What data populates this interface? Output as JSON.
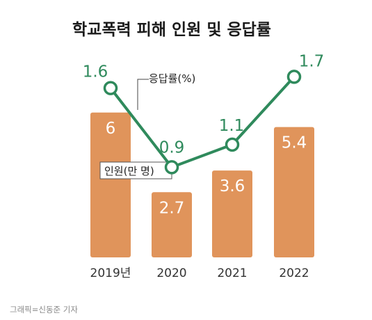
{
  "chart_data": {
    "type": "bar+line",
    "title": "학교폭력 피해 인원 및 응답률",
    "categories": [
      "2019년",
      "2020",
      "2021",
      "2022"
    ],
    "series": [
      {
        "name": "인원(만 명)",
        "type": "bar",
        "values": [
          6,
          2.7,
          3.6,
          5.4
        ],
        "labels": [
          "6",
          "2.7",
          "3.6",
          "5.4"
        ]
      },
      {
        "name": "응답률(%)",
        "type": "line",
        "values": [
          1.6,
          0.9,
          1.1,
          1.7
        ],
        "labels": [
          "1.6",
          "0.9",
          "1.1",
          "1.7"
        ]
      }
    ],
    "credit": "그래픽=신동준 기자",
    "colors": {
      "bar": "#E0945B",
      "line": "#2F8A5C",
      "text": "#1a1a1a"
    }
  }
}
